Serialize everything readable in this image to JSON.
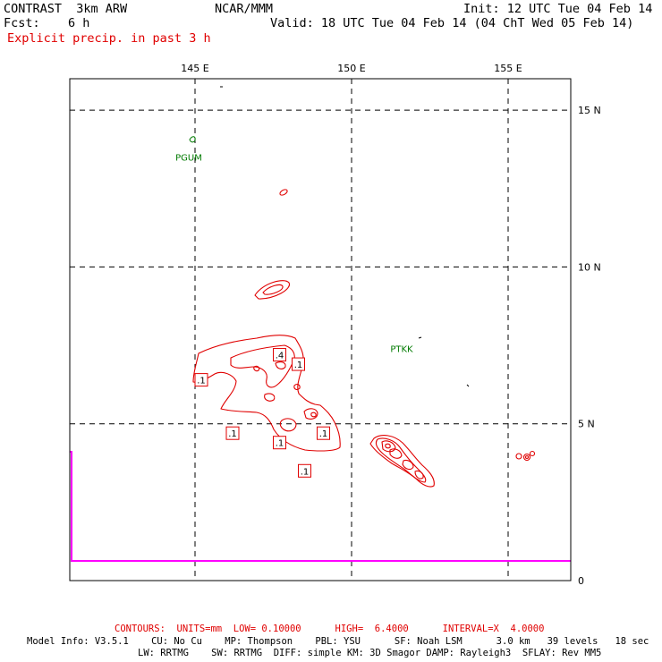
{
  "header": {
    "title": "CONTRAST  3km ARW",
    "center": "NCAR/MMM",
    "init": "Init: 12 UTC Tue 04 Feb 14",
    "fcst_label": "Fcst:",
    "fcst_value": "6 h",
    "valid": "Valid: 18 UTC Tue 04 Feb 14 (04 ChT Wed 05 Feb 14)",
    "field": "Explicit precip. in past 3 h"
  },
  "colors": {
    "contour": "#e00000",
    "station": "#007a00",
    "magenta": "#ff00ff",
    "grid": "#000000"
  },
  "chart_data": {
    "type": "contour",
    "xlim": [
      141,
      157
    ],
    "ylim": [
      0,
      16
    ],
    "x_ticks": [
      145,
      150,
      155
    ],
    "x_tick_labels": [
      "145 E",
      "150 E",
      "155 E"
    ],
    "y_ticks": [
      0,
      5,
      10,
      15
    ],
    "y_tick_labels": [
      "0",
      "5 N",
      "10 N",
      "15 N"
    ],
    "grid": true,
    "stations": [
      {
        "name": "PGUM",
        "lon": 144.8,
        "lat": 13.5
      },
      {
        "name": "PTKK",
        "lon": 151.6,
        "lat": 7.4
      }
    ],
    "contour_labels": [
      {
        "text": ".1",
        "lon": 145.2,
        "lat": 6.4
      },
      {
        "text": ".4",
        "lon": 147.7,
        "lat": 7.2
      },
      {
        "text": ".1",
        "lon": 148.3,
        "lat": 6.9
      },
      {
        "text": ".1",
        "lon": 146.2,
        "lat": 4.7
      },
      {
        "text": ".1",
        "lon": 147.7,
        "lat": 4.4
      },
      {
        "text": ".1",
        "lon": 149.1,
        "lat": 4.7
      },
      {
        "text": ".1",
        "lon": 148.5,
        "lat": 3.5
      }
    ],
    "contour_levels": [
      0.1,
      0.4,
      1.6,
      6.4
    ]
  },
  "footer": {
    "contours": "CONTOURS:  UNITS=mm  LOW= 0.10000      HIGH=  6.4000      INTERVAL=X  4.0000",
    "model_line1": "Model Info: V3.5.1    CU: No Cu    MP: Thompson    PBL: YSU      SF: Noah LSM      3.0 km   39 levels   18 sec",
    "model_line2": "LW: RRTMG    SW: RRTMG  DIFF: simple KM: 3D Smagor DAMP: Rayleigh3  SFLAY: Rev MM5"
  }
}
